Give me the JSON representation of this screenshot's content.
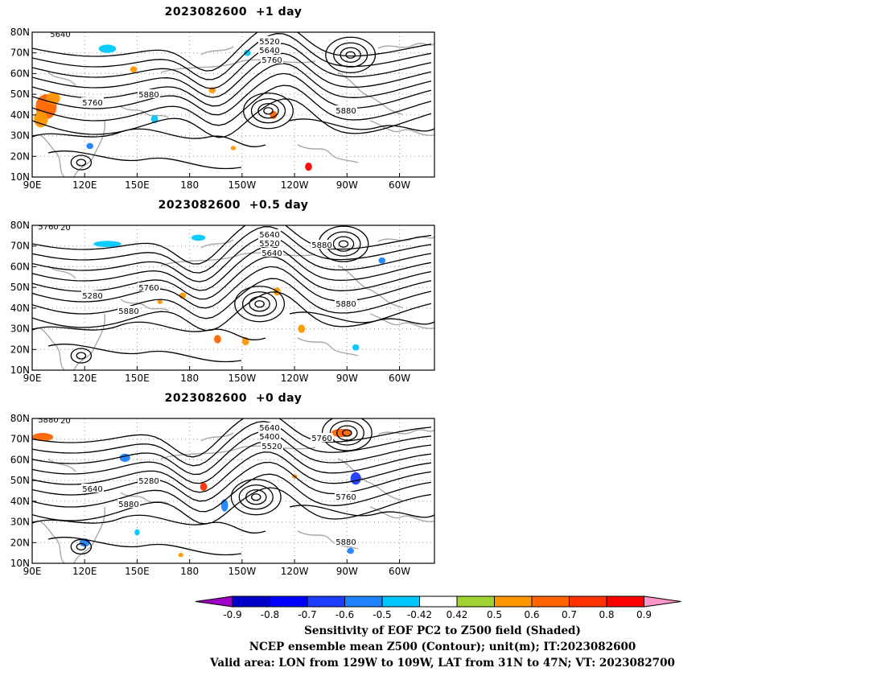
{
  "panels": [
    {
      "title": "2023082600  +1 day",
      "contour_labels": [
        "5640",
        "5520",
        "5640",
        "5760",
        "5760",
        "5880",
        "5880"
      ],
      "shading": [
        {
          "lon": 98,
          "lat": 44,
          "value": 0.6,
          "rx": 6,
          "ry": 6
        },
        {
          "lon": 95,
          "lat": 38,
          "value": 0.5,
          "rx": 4,
          "ry": 4
        },
        {
          "lon": 102,
          "lat": 48,
          "value": 0.5,
          "rx": 4,
          "ry": 3
        },
        {
          "lon": 133,
          "lat": 72,
          "value": -0.5,
          "rx": 5,
          "ry": 2
        },
        {
          "lon": 148,
          "lat": 62,
          "value": 0.5,
          "rx": 2,
          "ry": 1.5
        },
        {
          "lon": 160,
          "lat": 38,
          "value": -0.5,
          "rx": 2,
          "ry": 2
        },
        {
          "lon": 123,
          "lat": 25,
          "value": -0.6,
          "rx": 2,
          "ry": 1.5
        },
        {
          "lon": 193,
          "lat": 52,
          "value": 0.5,
          "rx": 2,
          "ry": 1.5
        },
        {
          "lon": 228,
          "lat": 40,
          "value": 0.6,
          "rx": 2,
          "ry": 2
        },
        {
          "lon": 248,
          "lat": 15,
          "value": 0.8,
          "rx": 2,
          "ry": 2
        },
        {
          "lon": 213,
          "lat": 70,
          "value": -0.5,
          "rx": 2,
          "ry": 1.5
        },
        {
          "lon": 205,
          "lat": 24,
          "value": 0.5,
          "rx": 1.5,
          "ry": 1
        }
      ],
      "centers": [
        {
          "lon": 272,
          "lat": 69
        },
        {
          "lon": 225,
          "lat": 42
        },
        {
          "lon": 118,
          "lat": 17
        }
      ]
    },
    {
      "title": "2023082600  +0.5 day",
      "contour_labels": [
        "5520",
        "5640",
        "5520",
        "5640",
        "5280",
        "5760",
        "5880",
        "5760",
        "5880",
        "5880"
      ],
      "shading": [
        {
          "lon": 133,
          "lat": 71,
          "value": -0.5,
          "rx": 8,
          "ry": 1.5
        },
        {
          "lon": 185,
          "lat": 74,
          "value": -0.5,
          "rx": 4,
          "ry": 1.5
        },
        {
          "lon": 163,
          "lat": 43,
          "value": 0.5,
          "rx": 1.5,
          "ry": 1
        },
        {
          "lon": 176,
          "lat": 46,
          "value": 0.5,
          "rx": 2,
          "ry": 1.5
        },
        {
          "lon": 196,
          "lat": 25,
          "value": 0.6,
          "rx": 2,
          "ry": 2
        },
        {
          "lon": 212,
          "lat": 24,
          "value": 0.5,
          "rx": 2,
          "ry": 2
        },
        {
          "lon": 230,
          "lat": 48,
          "value": 0.5,
          "rx": 2,
          "ry": 2
        },
        {
          "lon": 244,
          "lat": 30,
          "value": 0.5,
          "rx": 2,
          "ry": 2
        },
        {
          "lon": 290,
          "lat": 63,
          "value": -0.6,
          "rx": 2,
          "ry": 1.5
        },
        {
          "lon": 275,
          "lat": 21,
          "value": -0.5,
          "rx": 2,
          "ry": 1.5
        }
      ],
      "centers": [
        {
          "lon": 268,
          "lat": 71
        },
        {
          "lon": 220,
          "lat": 42
        },
        {
          "lon": 118,
          "lat": 17
        }
      ]
    },
    {
      "title": "2023082600  +0 day",
      "contour_labels": [
        "5520",
        "5640",
        "5400",
        "5520",
        "5640",
        "5280",
        "5760",
        "5880",
        "5760",
        "5880",
        "5880"
      ],
      "shading": [
        {
          "lon": 96,
          "lat": 71,
          "value": 0.6,
          "rx": 6,
          "ry": 2
        },
        {
          "lon": 143,
          "lat": 61,
          "value": -0.6,
          "rx": 3,
          "ry": 2
        },
        {
          "lon": 188,
          "lat": 47,
          "value": 0.7,
          "rx": 2,
          "ry": 2
        },
        {
          "lon": 200,
          "lat": 38,
          "value": -0.6,
          "rx": 2,
          "ry": 3
        },
        {
          "lon": 267,
          "lat": 73,
          "value": 0.6,
          "rx": 6,
          "ry": 2
        },
        {
          "lon": 275,
          "lat": 51,
          "value": -0.7,
          "rx": 3,
          "ry": 3
        },
        {
          "lon": 120,
          "lat": 20,
          "value": -0.6,
          "rx": 3,
          "ry": 2
        },
        {
          "lon": 272,
          "lat": 16,
          "value": -0.6,
          "rx": 2,
          "ry": 1.5
        },
        {
          "lon": 240,
          "lat": 52,
          "value": 0.5,
          "rx": 1.5,
          "ry": 1
        },
        {
          "lon": 175,
          "lat": 14,
          "value": 0.5,
          "rx": 1.5,
          "ry": 1
        },
        {
          "lon": 150,
          "lat": 25,
          "value": -0.5,
          "rx": 1.5,
          "ry": 1.5
        }
      ],
      "centers": [
        {
          "lon": 270,
          "lat": 73
        },
        {
          "lon": 218,
          "lat": 42
        },
        {
          "lon": 118,
          "lat": 18
        }
      ]
    }
  ],
  "axes": {
    "x_ticks": [
      {
        "lon": 90,
        "label": "90E"
      },
      {
        "lon": 120,
        "label": "120E"
      },
      {
        "lon": 150,
        "label": "150E"
      },
      {
        "lon": 180,
        "label": "180"
      },
      {
        "lon": 210,
        "label": "150W"
      },
      {
        "lon": 240,
        "label": "120W"
      },
      {
        "lon": 270,
        "label": "90W"
      },
      {
        "lon": 300,
        "label": "60W"
      }
    ],
    "y_ticks": [
      {
        "lat": 10,
        "label": "10N"
      },
      {
        "lat": 20,
        "label": "20N"
      },
      {
        "lat": 30,
        "label": "30N"
      },
      {
        "lat": 40,
        "label": "40N"
      },
      {
        "lat": 50,
        "label": "50N"
      },
      {
        "lat": 60,
        "label": "60N"
      },
      {
        "lat": 70,
        "label": "70N"
      },
      {
        "lat": 80,
        "label": "80N"
      }
    ],
    "lon_range": [
      90,
      320
    ],
    "lat_range": [
      10,
      80
    ]
  },
  "colorbar": {
    "levels": [
      "-0.9",
      "-0.8",
      "-0.7",
      "-0.6",
      "-0.5",
      "-0.42",
      "0.42",
      "0.5",
      "0.6",
      "0.7",
      "0.8",
      "0.9"
    ],
    "colors": [
      "#a000c8",
      "#0000c8",
      "#0000ff",
      "#1e3cff",
      "#1e82ff",
      "#00c8ff",
      "#ffffff",
      "#a0d232",
      "#ff9600",
      "#ff6400",
      "#ff3200",
      "#ff0000",
      "#ff96c8"
    ]
  },
  "caption": {
    "line1": "Sensitivity of EOF PC2 to Z500 field (Shaded)",
    "line2": "NCEP ensemble mean Z500 (Contour); unit(m); IT:2023082600",
    "line3": "Valid area: LON from 129W to 109W, LAT from 31N to 47N; VT: 2023082700"
  }
}
